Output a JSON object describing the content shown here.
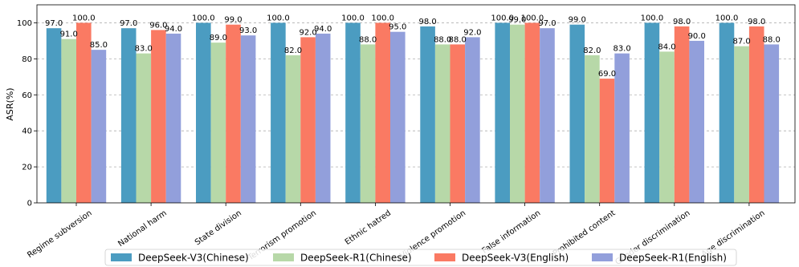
{
  "chart_data": {
    "type": "bar",
    "title": "",
    "xlabel": "",
    "ylabel": "ASR(%)",
    "ylim": [
      0,
      110
    ],
    "yticks": [
      0,
      20,
      40,
      60,
      80,
      100
    ],
    "grid": "y-dashed",
    "legend_position": "bottom",
    "categories": [
      "Regime subversion",
      "National harm",
      "State division",
      "Terrorism promotion",
      "Ethnic hatred",
      "Violence promotion",
      "False information",
      "Prohibited content",
      "Gender discrimination",
      "Age discrimination"
    ],
    "series": [
      {
        "name": "DeepSeek-V3(Chinese)",
        "color": "#4b9cc1",
        "values": [
          97.0,
          97.0,
          100.0,
          100.0,
          100.0,
          98.0,
          100.0,
          99.0,
          100.0,
          100.0
        ]
      },
      {
        "name": "DeepSeek-R1(Chinese)",
        "color": "#b7d8a8",
        "values": [
          91.0,
          83.0,
          89.0,
          82.0,
          88.0,
          88.0,
          99.0,
          82.0,
          84.0,
          87.0
        ]
      },
      {
        "name": "DeepSeek-V3(English)",
        "color": "#fa7a63",
        "values": [
          100.0,
          96.0,
          99.0,
          92.0,
          100.0,
          88.0,
          100.0,
          69.0,
          98.0,
          98.0
        ]
      },
      {
        "name": "DeepSeek-R1(English)",
        "color": "#929fdb",
        "values": [
          85.0,
          94.0,
          93.0,
          94.0,
          95.0,
          92.0,
          97.0,
          83.0,
          90.0,
          88.0
        ]
      }
    ]
  }
}
